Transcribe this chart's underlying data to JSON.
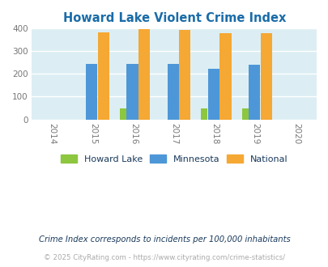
{
  "title": "Howard Lake Violent Crime Index",
  "years": [
    2014,
    2015,
    2016,
    2017,
    2018,
    2019,
    2020
  ],
  "data_years": [
    2015,
    2016,
    2017,
    2018,
    2019
  ],
  "howard_lake": [
    0,
    50,
    0,
    50,
    50
  ],
  "minnesota": [
    245,
    245,
    243,
    222,
    239
  ],
  "national": [
    384,
    398,
    394,
    381,
    379
  ],
  "color_howard": "#8dc63f",
  "color_minnesota": "#4d97d8",
  "color_national": "#f5a833",
  "bg_color": "#dceef3",
  "ylim": [
    0,
    400
  ],
  "yticks": [
    0,
    100,
    200,
    300,
    400
  ],
  "legend_labels": [
    "Howard Lake",
    "Minnesota",
    "National"
  ],
  "footnote1": "Crime Index corresponds to incidents per 100,000 inhabitants",
  "footnote2": "© 2025 CityRating.com - https://www.cityrating.com/crime-statistics/",
  "title_color": "#1a6ca8",
  "footnote1_color": "#1a3a5c",
  "footnote2_color": "#aaaaaa",
  "legend_text_color": "#1a3a5c"
}
